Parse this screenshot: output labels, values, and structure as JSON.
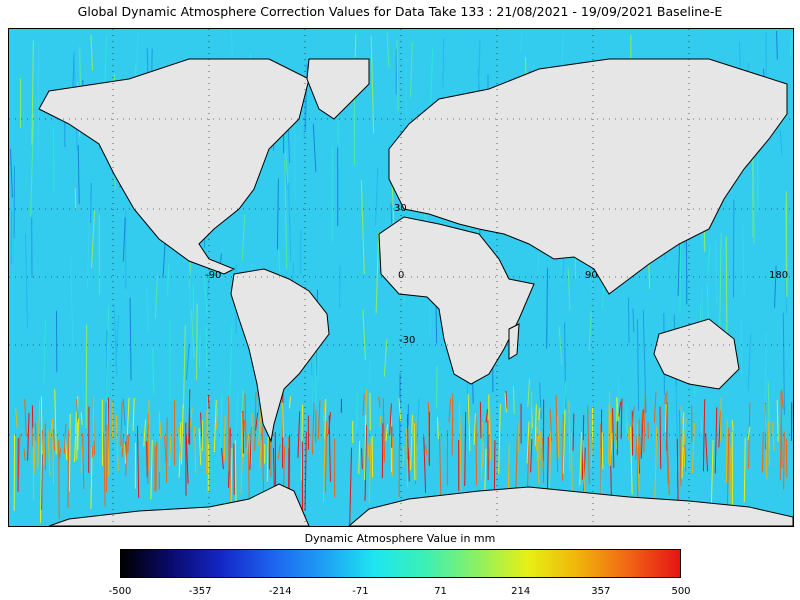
{
  "title": "Global Dynamic Atmosphere Correction Values for Data Take 133 : 21/08/2021 - 19/09/2021 Baseline-E",
  "map": {
    "projection": "equirectangular",
    "lon_range": [
      -180,
      180
    ],
    "lat_range": [
      -85,
      85
    ],
    "ocean_color": "#33ccee",
    "land_color": "#e6e6e6",
    "coastline_color": "#000000",
    "gridlines": "dotted",
    "grid_labels": {
      "lon": [
        "-90",
        "0",
        "90",
        "180"
      ],
      "lat": [
        "30",
        "-30"
      ]
    }
  },
  "colorbar": {
    "title": "Dynamic Atmosphere Value in mm",
    "range": [
      -500,
      500
    ],
    "ticks": [
      "-500",
      "-357",
      "-214",
      "-71",
      "71",
      "214",
      "357",
      "500"
    ],
    "colors": [
      "#000000",
      "#0a0a6e",
      "#1428c8",
      "#1e64f0",
      "#1ea0f5",
      "#1ee6f0",
      "#3cf0b4",
      "#8cf064",
      "#e6f014",
      "#f0b40a",
      "#f06414",
      "#e61414"
    ]
  }
}
